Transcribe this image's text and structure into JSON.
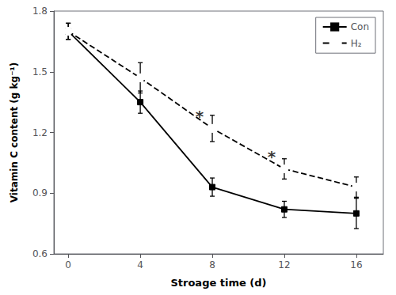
{
  "chart_data": {
    "type": "line",
    "x": [
      0,
      4,
      8,
      12,
      16
    ],
    "xlabel": "Stroage time (d)",
    "ylabel": "Vitamin C content (g kg⁻¹)",
    "xlim": [
      -0.8,
      17.5
    ],
    "xticks": [
      0,
      4,
      8,
      12,
      16
    ],
    "ylim": [
      0.6,
      1.8
    ],
    "yticks": [
      0.6,
      0.9,
      1.2,
      1.5,
      1.8
    ],
    "series": [
      {
        "name": "Con",
        "color": "#000000",
        "marker": "square",
        "line_style": "solid",
        "values": [
          1.7,
          1.35,
          0.93,
          0.82,
          0.8
        ],
        "errors": [
          0.04,
          0.055,
          0.045,
          0.04,
          0.075
        ]
      },
      {
        "name": "H₂",
        "color": "#000000",
        "marker": "circle",
        "line_style": "dashed",
        "values": [
          1.7,
          1.47,
          1.22,
          1.02,
          0.93
        ],
        "errors": [
          0.04,
          0.075,
          0.065,
          0.05,
          0.05
        ]
      }
    ],
    "annotations": [
      {
        "text": "*",
        "x": 8,
        "y": 1.3
      },
      {
        "text": "*",
        "x": 12,
        "y": 1.1
      }
    ],
    "grid": false,
    "legend": "upper right"
  }
}
